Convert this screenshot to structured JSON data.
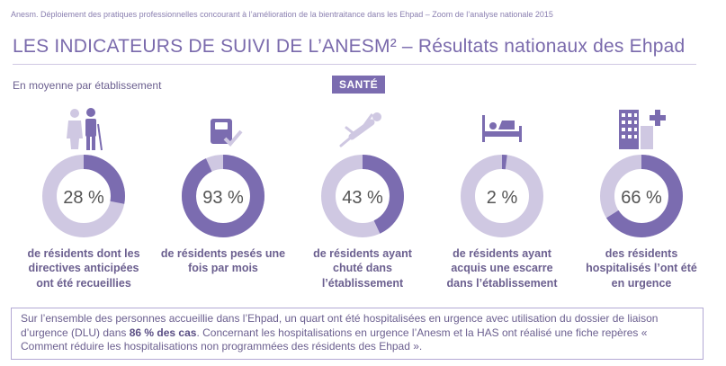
{
  "header": {
    "source": "Anesm. Déploiement des pratiques professionnelles concourant à l’amélioration de la bientraitance dans les Ehpad – Zoom de l’analyse nationale 2015"
  },
  "title": "LES INDICATEURS DE SUIVI DE L’ANESM² – Résultats nationaux des Ehpad",
  "subtitle": "En moyenne par établissement",
  "badge": "SANTÉ",
  "colors": {
    "accent": "#7b6cb0",
    "track": "#cfc8e2",
    "text": "#6b5f8f"
  },
  "chart_data": {
    "type": "pie",
    "series": [
      {
        "value": 28,
        "label": "28 %",
        "caption": "de résidents dont les directives anticipées ont été recueillies",
        "icon": "elderly-couple-icon"
      },
      {
        "value": 93,
        "label": "93 %",
        "caption": "de résidents pesés une fois par mois",
        "icon": "weighing-scale-icon"
      },
      {
        "value": 43,
        "label": "43 %",
        "caption": "de résidents ayant chuté dans l’établissement",
        "icon": "falling-person-icon"
      },
      {
        "value": 2,
        "label": "2 %",
        "caption": "de résidents ayant acquis une escarre dans l’établissement",
        "icon": "hospital-bed-icon"
      },
      {
        "value": 66,
        "label": "66 %",
        "caption": "des résidents hospitalisés l’ont été en urgence",
        "icon": "hospital-building-icon"
      }
    ]
  },
  "footer": {
    "text_part1": "Sur l’ensemble des personnes accueillie dans l’Ehpad, un quart ont été hospitalisées en urgence avec utilisation du dossier de liaison d’urgence (DLU) dans ",
    "text_bold": "86 % des cas",
    "text_part2": ". Concernant les hospitalisations en urgence l’Anesm et la HAS ont réalisé une fiche repères « Comment réduire les hospitalisations non programmées des résidents des Ehpad »."
  }
}
